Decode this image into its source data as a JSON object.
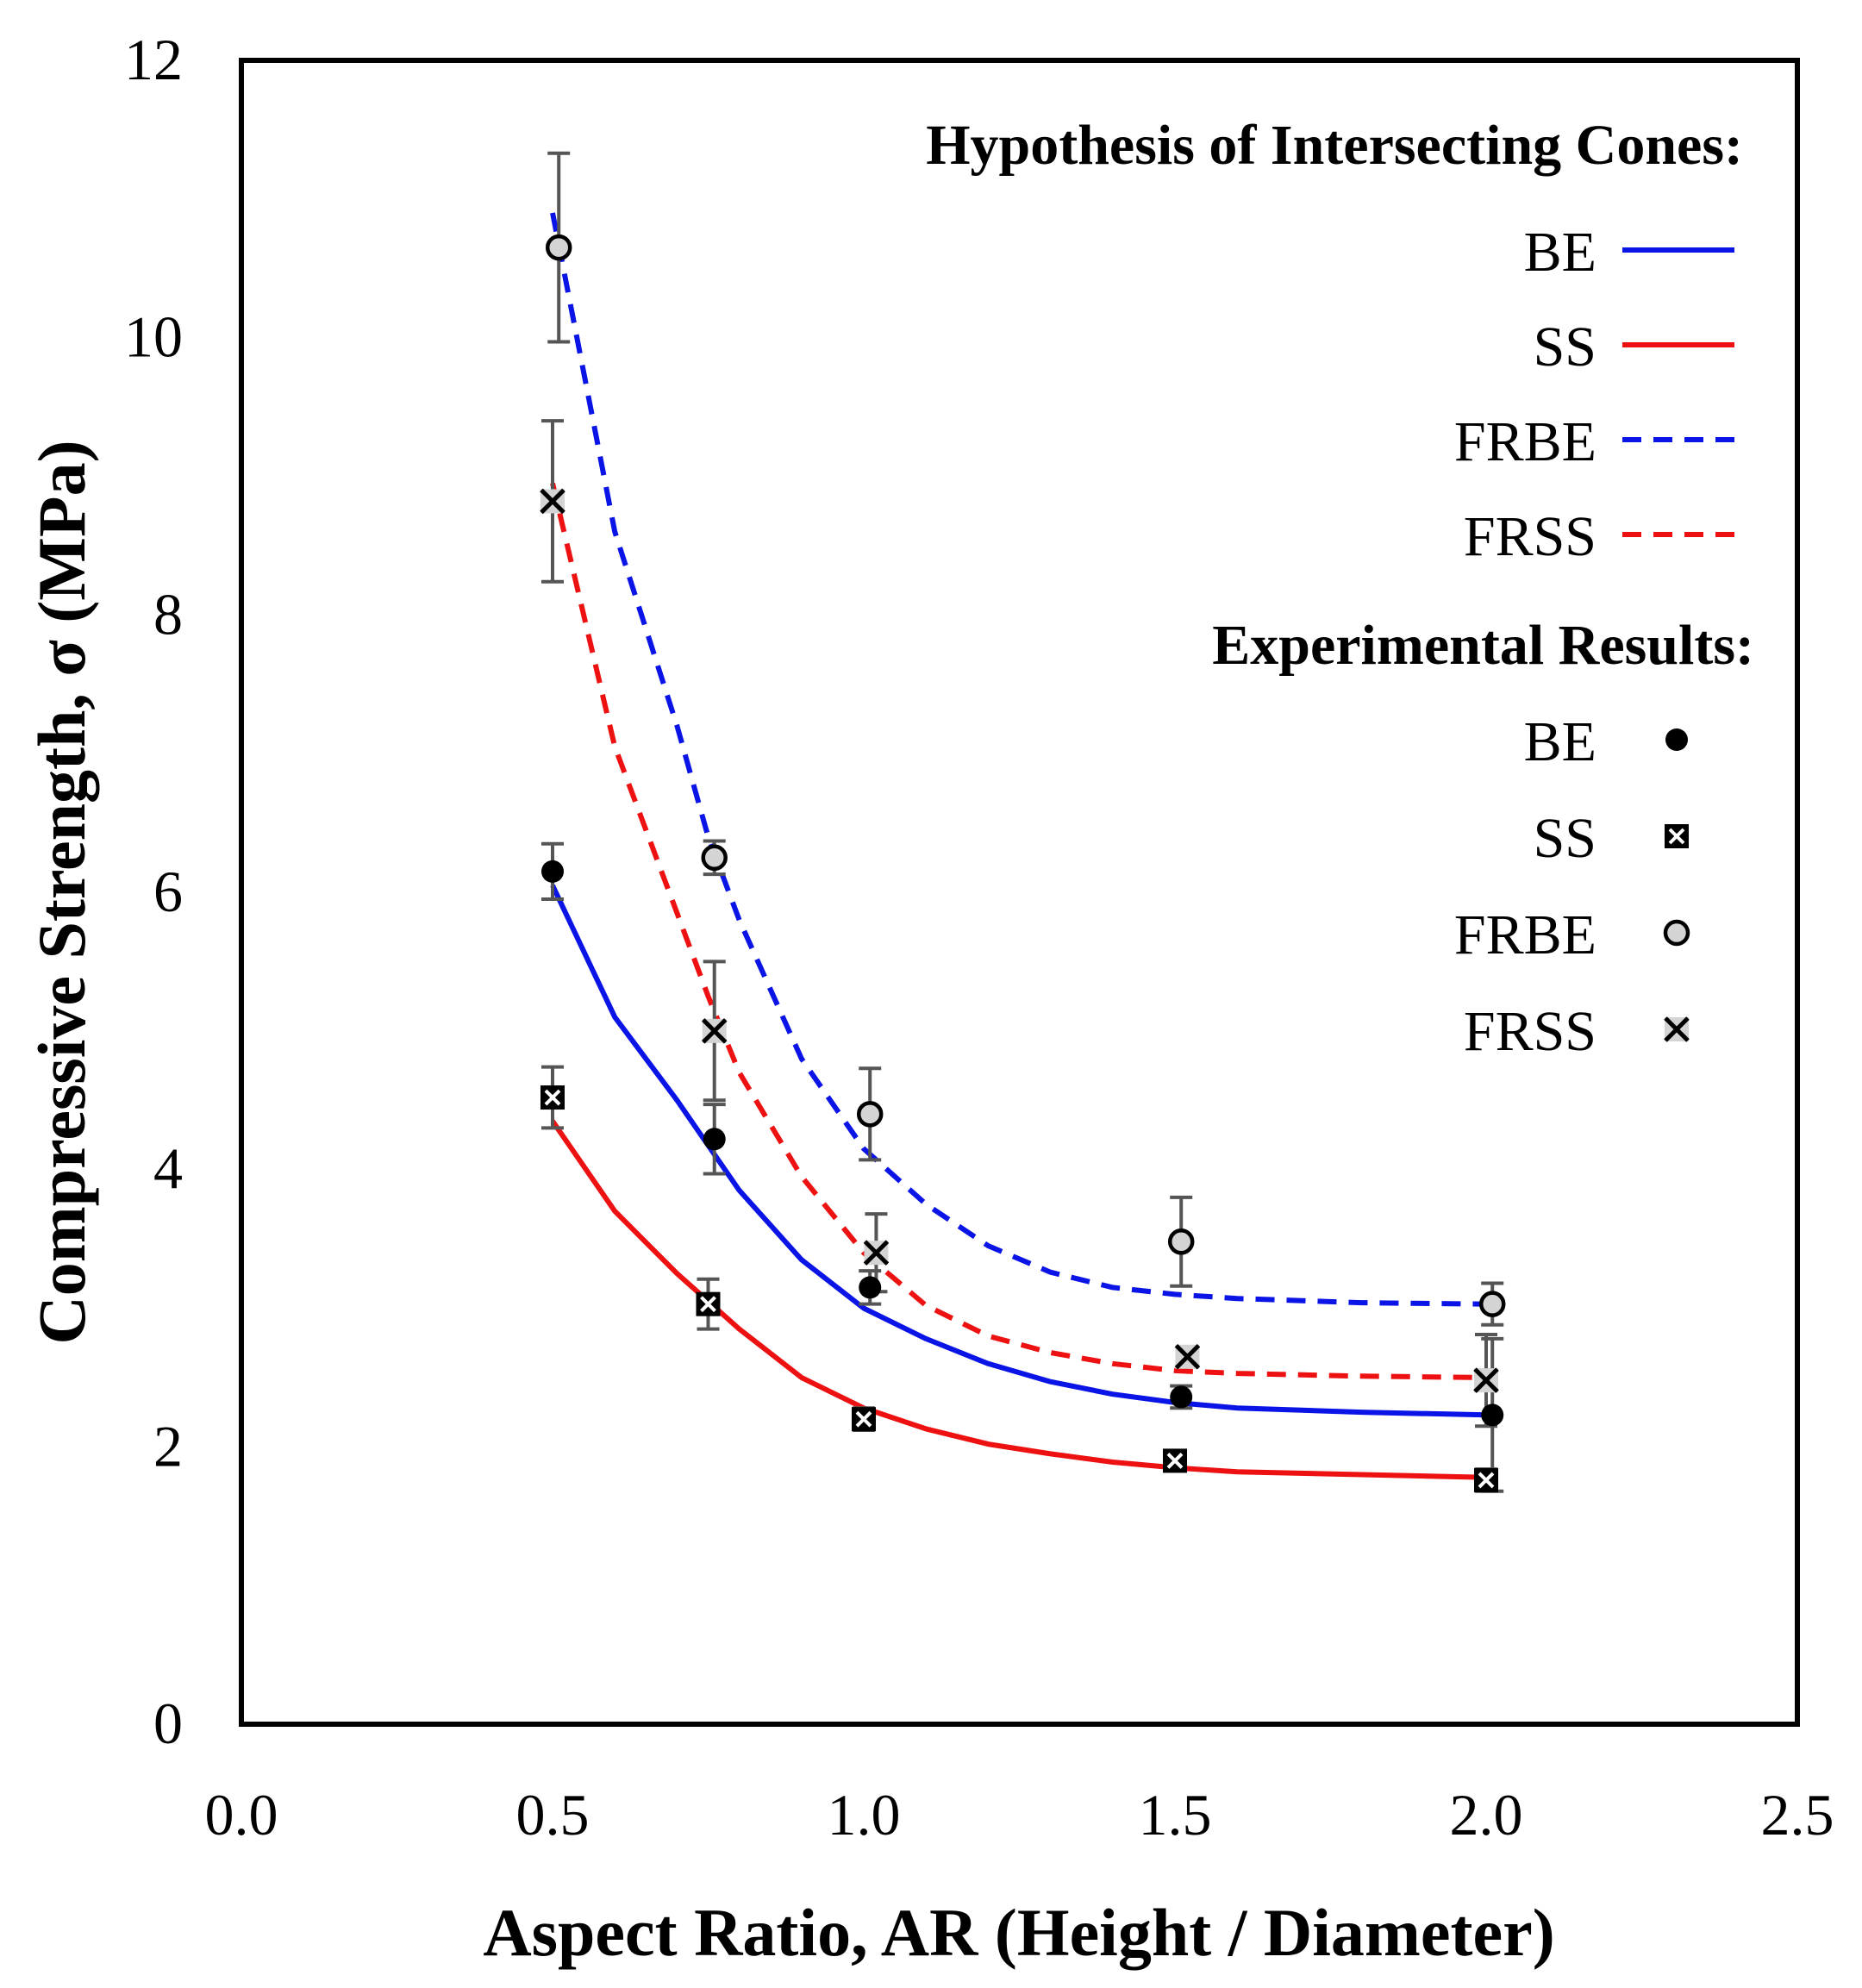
{
  "chart_data": {
    "type": "line",
    "xlabel": "Aspect Ratio, AR (Height / Diameter)",
    "ylabel": "Compressive Strength, σ (MPa)",
    "xlim": [
      0.0,
      2.5
    ],
    "ylim": [
      0,
      12
    ],
    "x_ticks": [
      0.0,
      0.5,
      1.0,
      1.5,
      2.0,
      2.5
    ],
    "x_tick_labels": [
      "0.0",
      "0.5",
      "1.0",
      "1.5",
      "2.0",
      "2.5"
    ],
    "y_ticks": [
      0,
      2,
      4,
      6,
      8,
      10,
      12
    ],
    "y_tick_labels": [
      "0",
      "2",
      "4",
      "6",
      "8",
      "10",
      "12"
    ],
    "grid": false,
    "legend": {
      "placement": "top-right",
      "model_title": "Hypothesis of Intersecting Cones:",
      "exp_title": "Experimental Results:",
      "model_entries": [
        "BE",
        "SS",
        "FRBE",
        "FRSS"
      ],
      "exp_entries": [
        "BE",
        "SS",
        "FRBE",
        "FRSS"
      ]
    },
    "colors": {
      "blue": "#0a14e6",
      "red": "#ee1111",
      "bar": "#555555",
      "gray_fill": "#d4d4d4"
    },
    "model_series": [
      {
        "name": "BE",
        "style": "solid",
        "color": "#0a14e6",
        "x": [
          0.5,
          0.6,
          0.7,
          0.8,
          0.9,
          1.0,
          1.1,
          1.2,
          1.3,
          1.4,
          1.5,
          1.6,
          1.8,
          2.0
        ],
        "y": [
          6.05,
          5.1,
          4.5,
          3.85,
          3.35,
          3.0,
          2.78,
          2.6,
          2.47,
          2.38,
          2.32,
          2.28,
          2.25,
          2.23
        ]
      },
      {
        "name": "SS",
        "style": "solid",
        "color": "#ee1111",
        "x": [
          0.5,
          0.6,
          0.7,
          0.8,
          0.9,
          1.0,
          1.1,
          1.2,
          1.3,
          1.4,
          1.5,
          1.6,
          1.8,
          2.0
        ],
        "y": [
          4.35,
          3.7,
          3.25,
          2.85,
          2.5,
          2.28,
          2.13,
          2.02,
          1.95,
          1.89,
          1.85,
          1.82,
          1.8,
          1.78
        ]
      },
      {
        "name": "FRBE",
        "style": "dashed",
        "color": "#0a14e6",
        "x": [
          0.5,
          0.6,
          0.7,
          0.75,
          0.8,
          0.9,
          1.0,
          1.1,
          1.2,
          1.3,
          1.4,
          1.5,
          1.6,
          1.8,
          2.0
        ],
        "y": [
          10.9,
          8.6,
          7.2,
          6.4,
          5.8,
          4.8,
          4.15,
          3.75,
          3.45,
          3.26,
          3.15,
          3.1,
          3.07,
          3.04,
          3.03
        ]
      },
      {
        "name": "FRSS",
        "style": "dashed",
        "color": "#ee1111",
        "x": [
          0.5,
          0.6,
          0.7,
          0.75,
          0.8,
          0.9,
          1.0,
          1.1,
          1.2,
          1.3,
          1.4,
          1.5,
          1.6,
          1.8,
          2.0
        ],
        "y": [
          8.95,
          7.05,
          5.85,
          5.25,
          4.7,
          3.95,
          3.4,
          3.02,
          2.8,
          2.68,
          2.6,
          2.55,
          2.53,
          2.51,
          2.5
        ]
      }
    ],
    "experimental_series": [
      {
        "name": "BE",
        "marker": "filled-circle",
        "points": [
          {
            "x": 0.5,
            "y": 6.15,
            "err": 0.2
          },
          {
            "x": 0.76,
            "y": 4.22,
            "err": 0.25
          },
          {
            "x": 1.01,
            "y": 3.15,
            "err": 0.12
          },
          {
            "x": 1.51,
            "y": 2.36,
            "err": 0.08
          },
          {
            "x": 2.01,
            "y": 2.23,
            "err": 0.55
          }
        ]
      },
      {
        "name": "SS",
        "marker": "boxed-x",
        "points": [
          {
            "x": 0.5,
            "y": 4.52,
            "err": 0.22
          },
          {
            "x": 0.75,
            "y": 3.03,
            "err": 0.18
          },
          {
            "x": 1.0,
            "y": 2.2,
            "err": 0.08
          },
          {
            "x": 1.5,
            "y": 1.9,
            "err": 0.0
          },
          {
            "x": 2.0,
            "y": 1.76,
            "err": 0.08
          }
        ]
      },
      {
        "name": "FRBE",
        "marker": "gray-circle",
        "points": [
          {
            "x": 0.51,
            "y": 10.65,
            "err": 0.68
          },
          {
            "x": 0.76,
            "y": 6.25,
            "err": 0.12
          },
          {
            "x": 1.01,
            "y": 4.4,
            "err": 0.33
          },
          {
            "x": 1.51,
            "y": 3.48,
            "err": 0.32
          },
          {
            "x": 2.01,
            "y": 3.03,
            "err": 0.15
          }
        ]
      },
      {
        "name": "FRSS",
        "marker": "gray-x",
        "points": [
          {
            "x": 0.5,
            "y": 8.82,
            "err": 0.58
          },
          {
            "x": 0.76,
            "y": 5.0,
            "err": 0.5
          },
          {
            "x": 1.02,
            "y": 3.4,
            "err": 0.28
          },
          {
            "x": 1.52,
            "y": 2.65,
            "err": 0.0
          },
          {
            "x": 2.0,
            "y": 2.48,
            "err": 0.33
          }
        ]
      }
    ]
  }
}
